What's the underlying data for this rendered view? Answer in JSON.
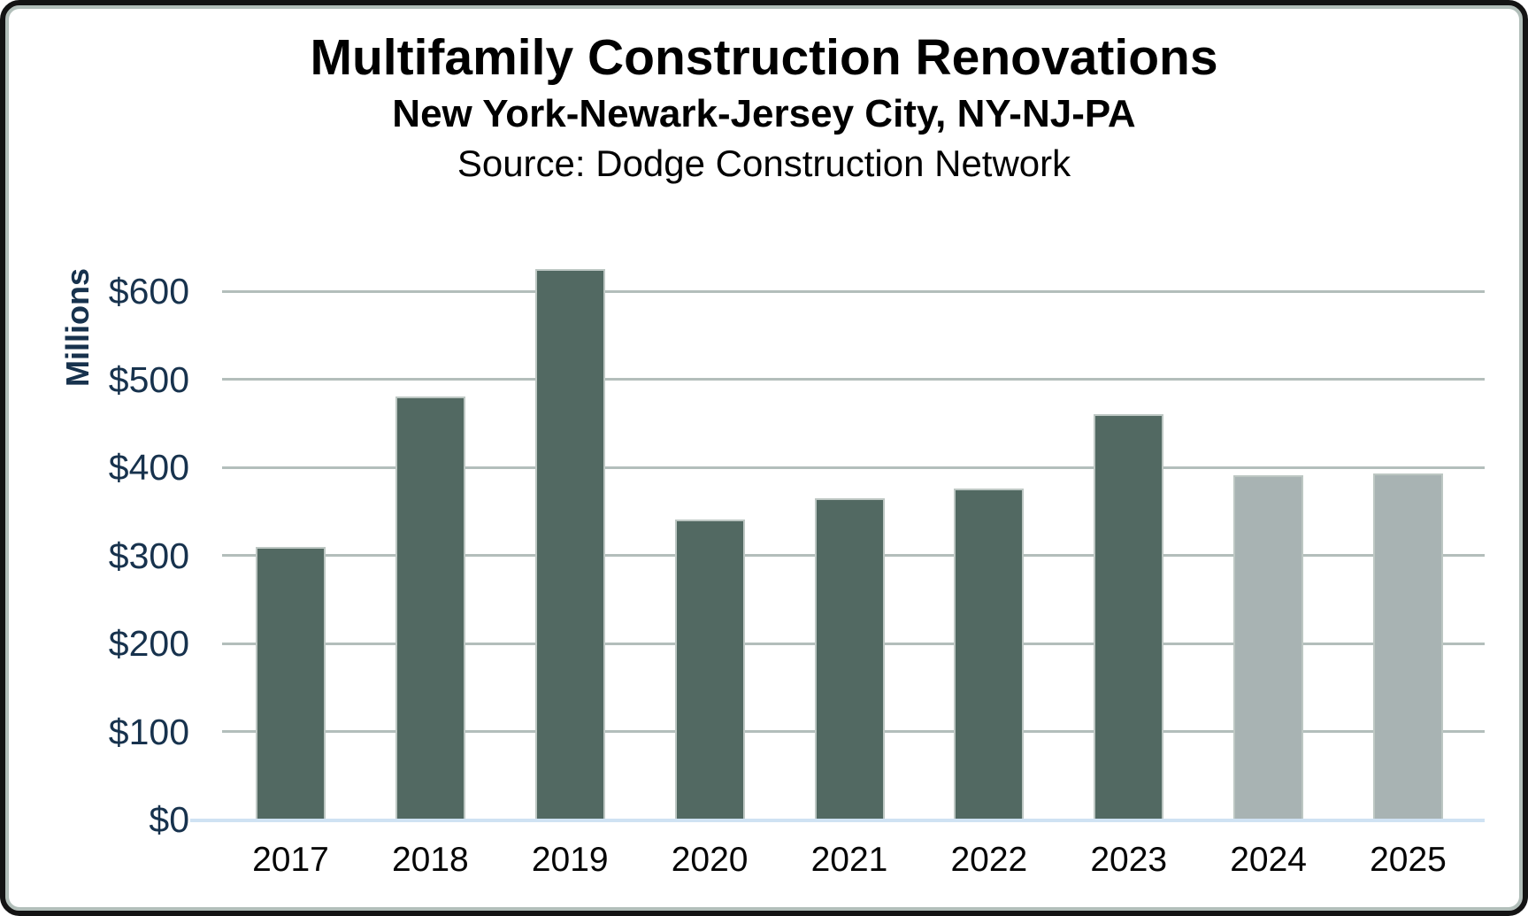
{
  "header": {
    "title": "Multifamily Construction Renovations",
    "subtitle": "New York-Newark-Jersey City, NY-NJ-PA",
    "source": "Source: Dodge Construction Network"
  },
  "chart_data": {
    "type": "bar",
    "title": "Multifamily Construction Renovations",
    "subtitle": "New York-Newark-Jersey City, NY-NJ-PA",
    "source": "Source: Dodge Construction Network",
    "xlabel": "",
    "ylabel": "Millions",
    "categories": [
      "2017",
      "2018",
      "2019",
      "2020",
      "2021",
      "2022",
      "2023",
      "2024",
      "2025"
    ],
    "values": [
      310,
      480,
      625,
      341,
      365,
      376,
      460,
      391,
      393
    ],
    "forecast_categories": [
      "2024",
      "2025"
    ],
    "units": "USD millions",
    "ylim": [
      0,
      650
    ],
    "yticks": [
      0,
      100,
      200,
      300,
      400,
      500,
      600
    ],
    "ytick_labels": [
      "$0",
      "$100",
      "$200",
      "$300",
      "$400",
      "$500",
      "$600"
    ],
    "grid": true,
    "legend": "none",
    "colors": {
      "bar_actual": "#526962",
      "bar_forecast": "#a8b3b3",
      "gridline": "#b3bebb",
      "baseline": "#cfe2f3",
      "axis_text": "#17324d",
      "category_text": "#050505",
      "title_text": "#000000",
      "frame_border": "#141414",
      "frame_inner_line": "#b2bfba"
    }
  }
}
